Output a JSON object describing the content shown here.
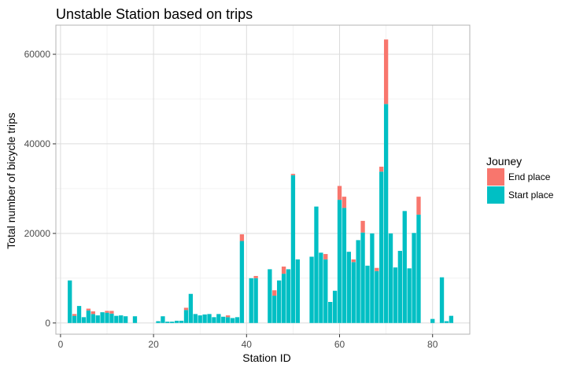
{
  "chart_data": {
    "type": "bar",
    "stacked": true,
    "title": "Unstable Station based on trips",
    "xlabel": "Station ID",
    "ylabel": "Total number of bicycle trips",
    "xlim": [
      -1,
      88
    ],
    "ylim": [
      -2500,
      66500
    ],
    "xticks": [
      0,
      20,
      40,
      60,
      80
    ],
    "yticks": [
      0,
      20000,
      40000,
      60000
    ],
    "grid": true,
    "legend_position": "right",
    "legend": {
      "title": "Jouney",
      "entries": [
        {
          "name": "End place",
          "color": "#F8766D"
        },
        {
          "name": "Start place",
          "color": "#00BFC4"
        }
      ]
    },
    "x": [
      2,
      3,
      4,
      5,
      6,
      7,
      8,
      9,
      10,
      11,
      12,
      13,
      14,
      16,
      21,
      22,
      23,
      24,
      25,
      26,
      27,
      28,
      29,
      30,
      31,
      32,
      33,
      34,
      35,
      36,
      37,
      38,
      39,
      41,
      42,
      45,
      46,
      47,
      48,
      49,
      50,
      51,
      54,
      55,
      56,
      57,
      58,
      59,
      60,
      61,
      62,
      63,
      64,
      65,
      66,
      67,
      68,
      69,
      70,
      71,
      72,
      73,
      74,
      75,
      76,
      77,
      80,
      82,
      83,
      84
    ],
    "series": [
      {
        "name": "Start place",
        "color": "#00BFC4",
        "values": [
          9500,
          1600,
          3800,
          1300,
          2800,
          2000,
          1700,
          2400,
          2300,
          2100,
          1600,
          1700,
          1500,
          1500,
          400,
          1500,
          300,
          300,
          500,
          500,
          2900,
          6500,
          2000,
          1700,
          1900,
          2000,
          1300,
          2000,
          1400,
          1300,
          1100,
          1300,
          18300,
          10000,
          10000,
          12000,
          6100,
          9500,
          11000,
          12000,
          33000,
          14200,
          14800,
          26000,
          15700,
          14200,
          4700,
          7200,
          27500,
          25700,
          15900,
          13600,
          18500,
          20200,
          12800,
          20000,
          11600,
          33800,
          48900,
          20000,
          12400,
          16100,
          25000,
          12200,
          20100,
          24200,
          900,
          10200,
          400,
          1600
        ]
      },
      {
        "name": "End place",
        "color": "#F8766D",
        "values": [
          0,
          400,
          0,
          0,
          400,
          600,
          0,
          0,
          400,
          600,
          0,
          0,
          0,
          0,
          0,
          0,
          0,
          0,
          0,
          0,
          500,
          0,
          0,
          0,
          0,
          0,
          0,
          0,
          0,
          400,
          0,
          0,
          1500,
          0,
          500,
          0,
          1200,
          0,
          1600,
          0,
          300,
          0,
          0,
          0,
          0,
          1200,
          0,
          0,
          3100,
          2500,
          0,
          600,
          0,
          2600,
          0,
          0,
          700,
          1100,
          14400,
          0,
          0,
          0,
          0,
          0,
          0,
          4000,
          0,
          0,
          0,
          0
        ]
      }
    ]
  }
}
